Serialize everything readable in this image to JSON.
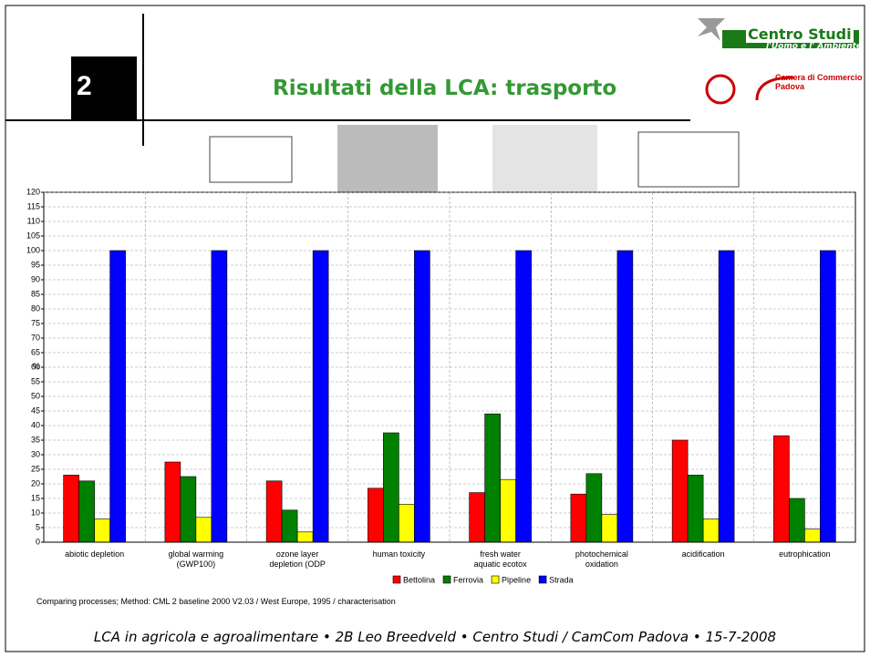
{
  "slide": {
    "logo": "2",
    "title": "Risultati della LCA: trasporto",
    "brand": "Centro Studi",
    "brand_sub": "l'Uomo e l' Ambiente",
    "chamber": "Camera di Commercio",
    "chamber_city": "Padova",
    "footer": "LCA in agricola e agroalimentare • 2B Leo Breedveld • Centro Studi / CamCom Padova • 15-7-2008"
  },
  "chart_data": {
    "type": "bar",
    "y_label": "%",
    "note": "Comparing processes;  Method: CML 2 baseline 2000 V2.03 / West Europe, 1995 / characterisation",
    "categories": [
      "abiotic depletion",
      "global warming\n(GWP100)",
      "ozone layer\ndepletion (ODP",
      "human toxicity",
      "fresh water\naquatic ecotox",
      "photochemical\noxidation",
      "acidification",
      "eutrophication"
    ],
    "series": [
      {
        "name": "Bettolina",
        "color": "#ff0000",
        "values": [
          23,
          27.5,
          21,
          18.5,
          17,
          16.5,
          35,
          36.5
        ]
      },
      {
        "name": "Ferrovia",
        "color": "#008000",
        "values": [
          21,
          22.5,
          11,
          37.5,
          44,
          23.5,
          23,
          15
        ]
      },
      {
        "name": "Pipeline",
        "color": "#ffff00",
        "values": [
          8,
          8.5,
          3.5,
          13,
          21.5,
          9.5,
          8,
          4.5
        ]
      },
      {
        "name": "Strada",
        "color": "#0000ff",
        "values": [
          100,
          100,
          100,
          100,
          100,
          100,
          100,
          100
        ]
      }
    ],
    "ylim": [
      0,
      120
    ],
    "yticks": [
      0,
      5,
      10,
      15,
      20,
      25,
      30,
      35,
      40,
      45,
      50,
      55,
      60,
      65,
      70,
      75,
      80,
      85,
      90,
      95,
      100,
      105,
      110,
      115,
      120
    ],
    "grid": true,
    "legend": "bottom"
  }
}
